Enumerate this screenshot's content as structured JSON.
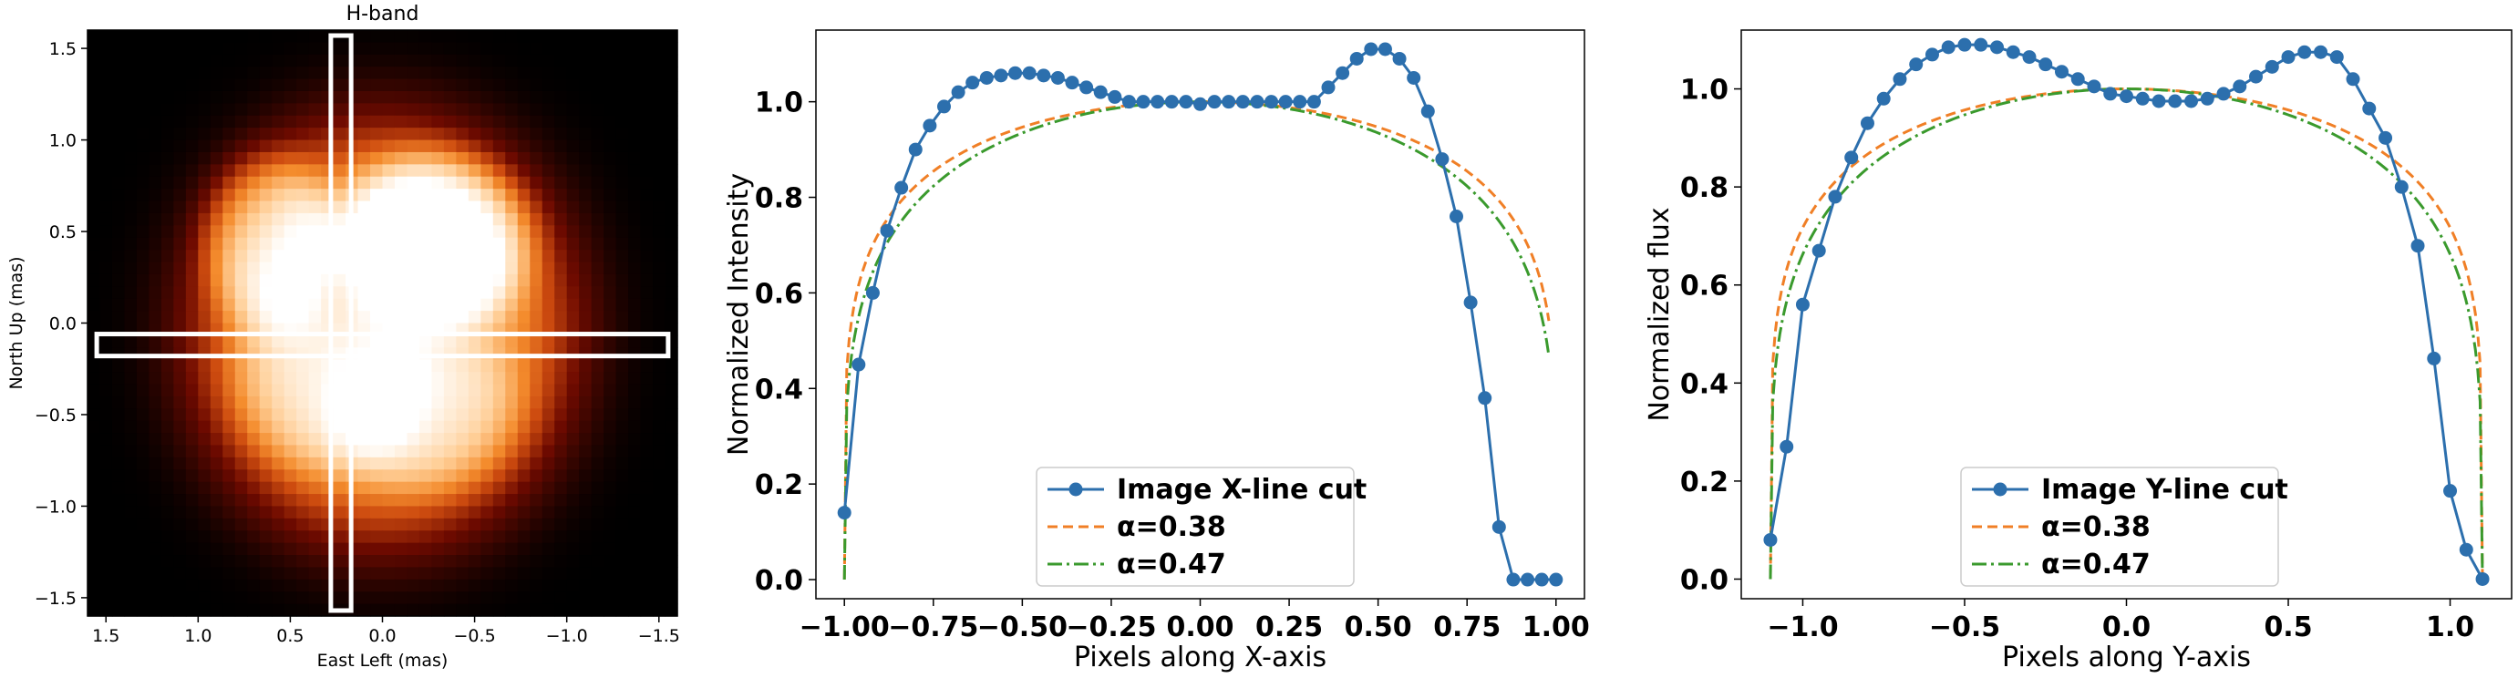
{
  "chart_data": [
    {
      "type": "heatmap",
      "title": "H-band",
      "xlabel": "East Left (mas)",
      "ylabel": "North Up (mas)",
      "xlim": [
        1.6,
        -1.6
      ],
      "ylim": [
        -1.6,
        1.6
      ],
      "x_ticks": [
        "1.5",
        "1.0",
        "0.5",
        "0.0",
        "−0.5",
        "−1.0",
        "−1.5"
      ],
      "y_ticks": [
        "1.5",
        "1.0",
        "0.5",
        "0.0",
        "−0.5",
        "−1.0",
        "−1.5"
      ],
      "colormap": "gist_heat",
      "blobs": [
        {
          "x": 0.0,
          "y": -0.05,
          "sx": 0.92,
          "sy": 1.02,
          "amp": 0.78
        },
        {
          "x": -0.28,
          "y": 0.45,
          "sx": 0.45,
          "sy": 0.42,
          "amp": 0.45
        },
        {
          "x": 0.62,
          "y": 0.45,
          "sx": 0.32,
          "sy": 0.42,
          "amp": 0.32
        },
        {
          "x": 0.3,
          "y": -0.35,
          "sx": 0.45,
          "sy": 0.42,
          "amp": 0.18
        },
        {
          "x": -0.25,
          "y": -0.5,
          "sx": 0.45,
          "sy": 0.38,
          "amp": 0.18
        }
      ],
      "cut_boxes": [
        {
          "name": "horizontal-cut",
          "x_range": [
            1.55,
            -1.55
          ],
          "y_range": [
            -0.18,
            -0.06
          ]
        },
        {
          "name": "vertical-cut",
          "x_range": [
            0.28,
            0.17
          ],
          "y_range": [
            -1.57,
            1.57
          ]
        }
      ],
      "box_color": "#ffffff"
    },
    {
      "type": "line",
      "xlabel": "Pixels along X-axis",
      "ylabel": "Normalized Intensity",
      "xlim": [
        -1.08,
        1.08
      ],
      "ylim": [
        -0.04,
        1.15
      ],
      "x_ticks": [
        "−1.00",
        "−0.75",
        "−0.50",
        "−0.25",
        "0.00",
        "0.25",
        "0.50",
        "0.75",
        "1.00"
      ],
      "y_ticks": [
        "0.0",
        "0.2",
        "0.4",
        "0.6",
        "0.8",
        "1.0"
      ],
      "series": [
        {
          "name": "Image X-line cut",
          "style": "solid-markers",
          "color": "#2c6fad",
          "x": [
            -1.0,
            -0.96,
            -0.92,
            -0.88,
            -0.84,
            -0.8,
            -0.76,
            -0.72,
            -0.68,
            -0.64,
            -0.6,
            -0.56,
            -0.52,
            -0.48,
            -0.44,
            -0.4,
            -0.36,
            -0.32,
            -0.28,
            -0.24,
            -0.2,
            -0.16,
            -0.12,
            -0.08,
            -0.04,
            0.0,
            0.04,
            0.08,
            0.12,
            0.16,
            0.2,
            0.24,
            0.28,
            0.32,
            0.36,
            0.4,
            0.44,
            0.48,
            0.52,
            0.56,
            0.6,
            0.64,
            0.68,
            0.72,
            0.76,
            0.8,
            0.84,
            0.88,
            0.92,
            0.96,
            1.0
          ],
          "y": [
            0.14,
            0.45,
            0.6,
            0.73,
            0.82,
            0.9,
            0.95,
            0.99,
            1.02,
            1.04,
            1.05,
            1.055,
            1.06,
            1.06,
            1.055,
            1.05,
            1.04,
            1.03,
            1.02,
            1.01,
            1.0,
            1.0,
            1.0,
            1.0,
            1.0,
            0.995,
            1.0,
            1.0,
            1.0,
            1.0,
            1.0,
            1.0,
            1.0,
            1.0,
            1.03,
            1.06,
            1.09,
            1.11,
            1.11,
            1.09,
            1.05,
            0.98,
            0.88,
            0.76,
            0.58,
            0.38,
            0.11,
            0.0,
            0.0,
            0.0,
            0.0
          ]
        },
        {
          "name": "α=0.38",
          "style": "dashed",
          "color": "#f07f26",
          "alpha": 0.38,
          "x_range": [
            -1.0,
            0.98
          ]
        },
        {
          "name": "α=0.47",
          "style": "dashdot",
          "color": "#3a9a2d",
          "alpha": 0.47,
          "x_range": [
            -1.0,
            0.98
          ]
        }
      ],
      "legend_loc": "lower center"
    },
    {
      "type": "line",
      "xlabel": "Pixels along Y-axis",
      "ylabel": "Normalized flux",
      "xlim": [
        -1.19,
        1.19
      ],
      "ylim": [
        -0.04,
        1.12
      ],
      "x_ticks": [
        "−1.0",
        "−0.5",
        "0.0",
        "0.5",
        "1.0"
      ],
      "y_ticks": [
        "0.0",
        "0.2",
        "0.4",
        "0.6",
        "0.8",
        "1.0"
      ],
      "series": [
        {
          "name": "Image Y-line cut",
          "style": "solid-markers",
          "color": "#2c6fad",
          "x": [
            -1.1,
            -1.05,
            -1.0,
            -0.95,
            -0.9,
            -0.85,
            -0.8,
            -0.75,
            -0.7,
            -0.65,
            -0.6,
            -0.55,
            -0.5,
            -0.45,
            -0.4,
            -0.35,
            -0.3,
            -0.25,
            -0.2,
            -0.15,
            -0.1,
            -0.05,
            0.0,
            0.05,
            0.1,
            0.15,
            0.2,
            0.25,
            0.3,
            0.35,
            0.4,
            0.45,
            0.5,
            0.55,
            0.6,
            0.65,
            0.7,
            0.75,
            0.8,
            0.85,
            0.9,
            0.95,
            1.0,
            1.05,
            1.1
          ],
          "y": [
            0.08,
            0.27,
            0.56,
            0.67,
            0.78,
            0.86,
            0.93,
            0.98,
            1.02,
            1.05,
            1.07,
            1.085,
            1.09,
            1.09,
            1.085,
            1.075,
            1.065,
            1.05,
            1.035,
            1.02,
            1.005,
            0.99,
            0.985,
            0.98,
            0.975,
            0.975,
            0.975,
            0.98,
            0.99,
            1.005,
            1.025,
            1.045,
            1.065,
            1.075,
            1.075,
            1.065,
            1.02,
            0.96,
            0.9,
            0.8,
            0.68,
            0.45,
            0.18,
            0.06,
            0.0
          ]
        },
        {
          "name": "α=0.38",
          "style": "dashed",
          "color": "#f07f26",
          "alpha": 0.38,
          "x_range": [
            -1.1,
            1.1
          ]
        },
        {
          "name": "α=0.47",
          "style": "dashdot",
          "color": "#3a9a2d",
          "alpha": 0.47,
          "x_range": [
            -1.1,
            1.1
          ]
        }
      ],
      "legend_loc": "lower center"
    }
  ]
}
